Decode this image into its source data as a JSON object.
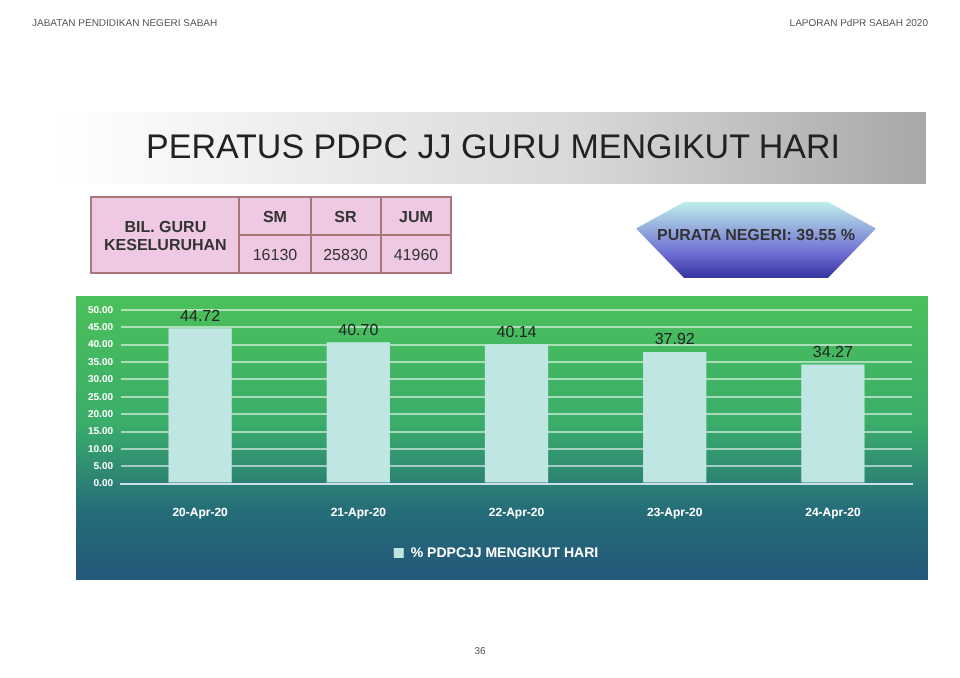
{
  "chart_data": {
    "type": "bar",
    "title": "PERATUS PDPC JJ GURU MENGIKUT HARI",
    "categories": [
      "20-Apr-20",
      "21-Apr-20",
      "22-Apr-20",
      "23-Apr-20",
      "24-Apr-20"
    ],
    "series": [
      {
        "name": "% PDPCJJ MENGIKUT HARI",
        "color": "#bfe6e2",
        "values": [
          44.72,
          40.7,
          40.14,
          37.92,
          34.27
        ],
        "value_labels": [
          "44.72",
          "40.70",
          "40.14",
          "37.92",
          "34.27"
        ]
      }
    ],
    "ylim": [
      0,
      50
    ],
    "yticks": [
      {
        "value": 0,
        "label": "0.00"
      },
      {
        "value": 5,
        "label": "5.00"
      },
      {
        "value": 10,
        "label": "10.00"
      },
      {
        "value": 15,
        "label": "15.00"
      },
      {
        "value": 20,
        "label": "20.00"
      },
      {
        "value": 25,
        "label": "25.00"
      },
      {
        "value": 30,
        "label": "30.00"
      },
      {
        "value": 35,
        "label": "35.00"
      },
      {
        "value": 40,
        "label": "40.00"
      },
      {
        "value": 45,
        "label": "45.00"
      },
      {
        "value": 50,
        "label": "50.00"
      }
    ],
    "grid": "y",
    "legend": "bottom",
    "annotations": [
      "JABATAN PENDIDIKAN NEGERI SABAH",
      "LAPORAN PdPR SABAH 2020",
      "BIL. GURU KESELURUHAN",
      "SM",
      "SR",
      "JUM",
      "16130",
      "25830",
      "41960",
      "PURATA NEGERI: 39.55 %",
      "36"
    ]
  }
}
